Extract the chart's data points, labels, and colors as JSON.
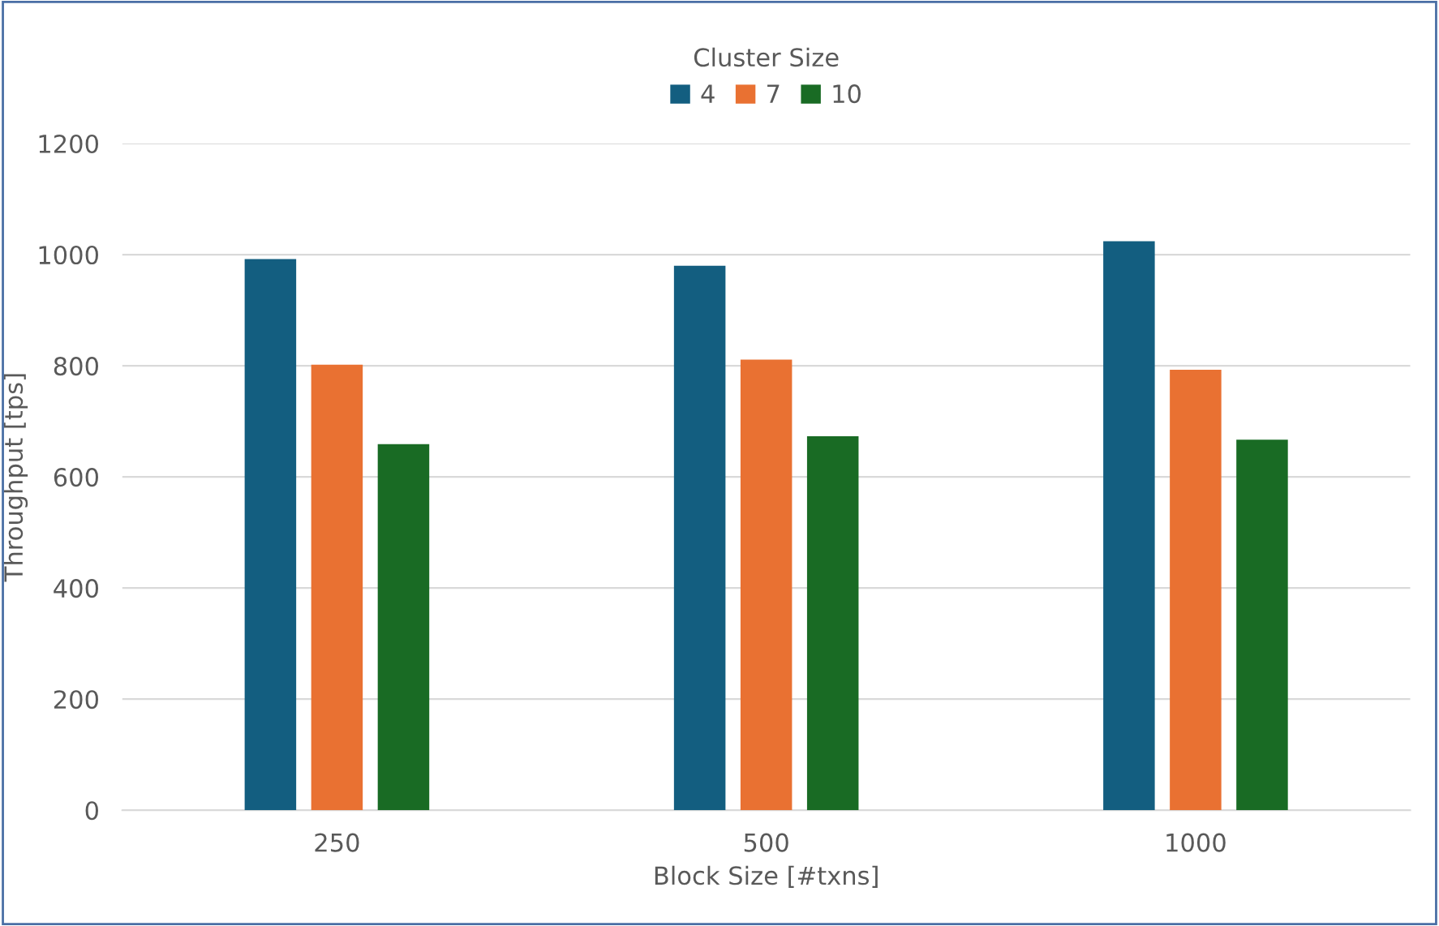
{
  "chart_data": {
    "type": "bar",
    "xlabel": "Block Size [#txns]",
    "ylabel": "Throughput [tps]",
    "legend_title": "Cluster Size",
    "legend": "top",
    "categories": [
      "250",
      "500",
      "1000"
    ],
    "series": [
      {
        "name": "4",
        "color": "#135e80",
        "values": [
          992,
          980,
          1024
        ]
      },
      {
        "name": "7",
        "color": "#e97132",
        "values": [
          802,
          811,
          793
        ]
      },
      {
        "name": "10",
        "color": "#196b24",
        "values": [
          659,
          673,
          667
        ]
      }
    ],
    "ylim": [
      0,
      1200
    ],
    "yticks": [
      0,
      200,
      400,
      600,
      800,
      1000,
      1200
    ],
    "grid": "y"
  }
}
